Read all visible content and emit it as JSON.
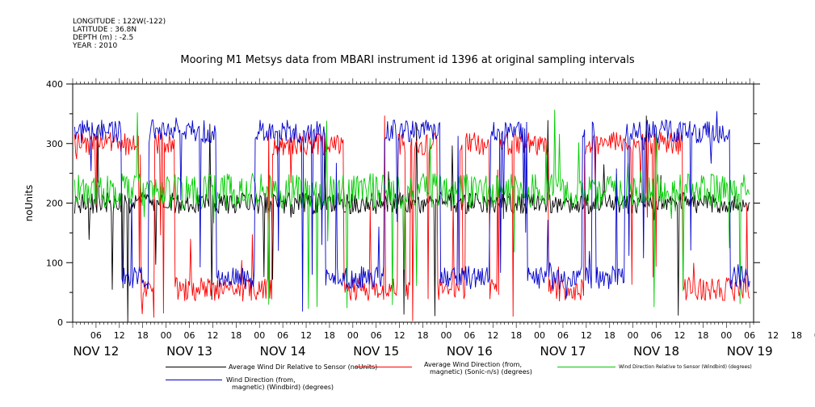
{
  "meta_lines": [
    "LONGITUDE : 122W(-122)",
    "LATITUDE : 36.8N",
    "DEPTH (m) : -2.5",
    "YEAR : 2010"
  ],
  "chart_data": {
    "type": "line",
    "title": "Mooring M1 Metsys data from MBARI instrument id 1396 at original sampling intervals",
    "ylabel": "noUnits",
    "xlabel": "",
    "ylim": [
      0,
      400
    ],
    "yticks": [
      0,
      100,
      200,
      300,
      400
    ],
    "xlim_hours": [
      0,
      175
    ],
    "hour_tick_labels": [
      "06",
      "12",
      "18",
      "00",
      "06",
      "12",
      "18",
      "00",
      "06",
      "12",
      "18",
      "00",
      "06",
      "12",
      "18",
      "00",
      "06",
      "12",
      "18",
      "00",
      "06",
      "12",
      "18",
      "00",
      "06",
      "12",
      "18",
      "00",
      "06",
      "12",
      "18",
      "00"
    ],
    "date_labels": [
      "NOV 12",
      "NOV 13",
      "NOV 14",
      "NOV 15",
      "NOV 16",
      "NOV 17",
      "NOV 18",
      "NOV 19"
    ],
    "grid": false,
    "legend_placement": "bottom",
    "series": [
      {
        "name": "Average Wind Dir Relative to Sensor (noUnits)",
        "color": "#000000",
        "level": 200,
        "noise": 18
      },
      {
        "name": "Average Wind Direction (from, magnetic) (Sonic-n/s) (degrees)",
        "color": "#ff0000",
        "high": 300,
        "low": 55,
        "noise": 20
      },
      {
        "name": "Wind Direction Relative to Sensor (Windbird) (degrees)",
        "color": "#00cc00",
        "level": 220,
        "noise": 30
      },
      {
        "name": "Wind Direction (from, magnetic) (Windbird) (degrees)",
        "color": "#0000cc",
        "high": 320,
        "low": 75,
        "noise": 20
      }
    ]
  },
  "legend": [
    {
      "line1": "Average Wind Dir Relative to Sensor (noUnits)",
      "line2": "",
      "color": "#000000"
    },
    {
      "line1": "Average Wind Direction (from,",
      "line2": "magnetic) (Sonic-n/s) (degrees)",
      "color": "#ff0000"
    },
    {
      "line1": "Wind Direction Relative to Sensor (Windbird) (degrees)",
      "line2": "",
      "color": "#00cc00"
    },
    {
      "line1": "Wind Direction (from,",
      "line2": "magnetic) (Windbird) (degrees)",
      "color": "#0000cc"
    }
  ]
}
